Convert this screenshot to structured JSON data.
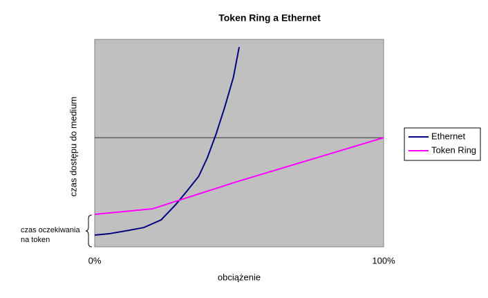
{
  "chart_data": {
    "type": "line",
    "title": "Token Ring a Ethernet",
    "x_label": "obciążenie",
    "y_label": "czas dostępu do medium",
    "annotation": [
      "czas oczekiwania",
      "na token"
    ],
    "xlim": [
      0,
      100
    ],
    "xticks": [
      {
        "value": 0,
        "label": "0%"
      },
      {
        "value": 100,
        "label": "100%"
      }
    ],
    "ylim": [
      0,
      1.9
    ],
    "yticks": [
      1
    ],
    "grid": true,
    "legend": "right",
    "series": [
      {
        "name": "Ethernet",
        "color": "#000080",
        "x": [
          0,
          5,
          12,
          17,
          23,
          28,
          32,
          36,
          39,
          42,
          45,
          48,
          50
        ],
        "values": [
          0.108,
          0.12,
          0.152,
          0.177,
          0.247,
          0.386,
          0.513,
          0.646,
          0.817,
          1.032,
          1.279,
          1.552,
          1.83
        ]
      },
      {
        "name": "Token Ring",
        "color": "#ff00ff",
        "x": [
          0,
          20,
          49,
          100
        ],
        "values": [
          0.298,
          0.348,
          0.595,
          1.0
        ]
      }
    ]
  }
}
